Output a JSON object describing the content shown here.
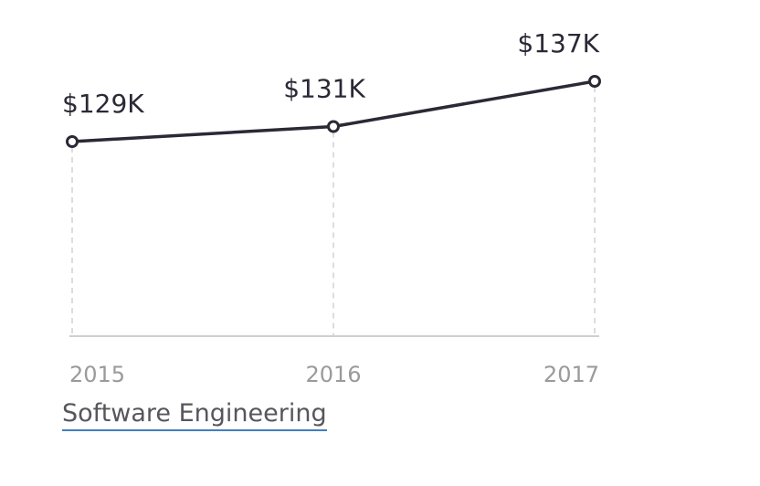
{
  "chart_data": {
    "type": "line",
    "x": [
      "2015",
      "2016",
      "2017"
    ],
    "series": [
      {
        "values": [
          129,
          131,
          137
        ]
      }
    ],
    "data_labels": [
      "$129K",
      "$131K",
      "$137K"
    ],
    "xlabel": "",
    "ylabel": "",
    "ylim": [
      100,
      140
    ],
    "grid": "vertical dashed lines at each year",
    "legend": "none",
    "colors": {
      "line": "#2b2936",
      "grid": "#dddddd",
      "axis": "#cfcfcf",
      "tick_text": "#9a9a9a",
      "label_text": "#2b2936"
    }
  },
  "footer": {
    "title_link": "Software Engineering",
    "link_underline_color": "#3f7fbf"
  }
}
